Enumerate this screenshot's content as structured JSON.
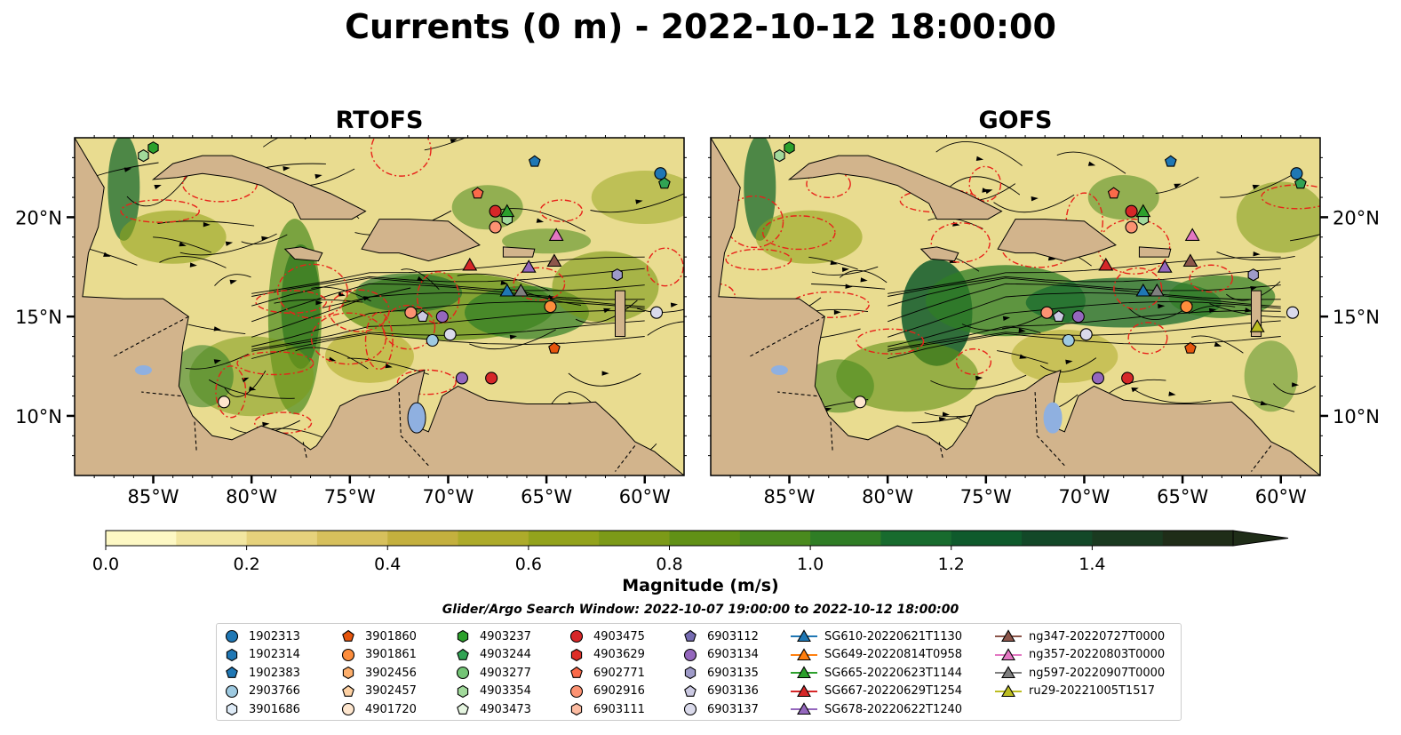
{
  "title": "Currents (0 m) - 2022-10-12 18:00:00",
  "panels": [
    {
      "title": "RTOFS"
    },
    {
      "title": "GOFS"
    }
  ],
  "colorbar": {
    "label": "Magnitude (m/s)",
    "ticks": [
      "0.0",
      "0.2",
      "0.4",
      "0.6",
      "0.8",
      "1.0",
      "1.2",
      "1.4"
    ],
    "colors": [
      "#fdf8c4",
      "#f2e6a0",
      "#e6d27c",
      "#d7c05c",
      "#c4b03e",
      "#adab2a",
      "#93a31c",
      "#7c9a18",
      "#619116",
      "#4a8a1e",
      "#2f7d25",
      "#186b2e",
      "#0f5a2c",
      "#134828",
      "#1a3a20",
      "#1f2d18"
    ],
    "vmin": 0.0,
    "vmax": 1.6
  },
  "search_window": "Glider/Argo Search Window: 2022-10-07 19:00:00 to 2022-10-12 18:00:00",
  "x_tick_labels": [
    "85°W",
    "80°W",
    "75°W",
    "70°W",
    "65°W",
    "60°W"
  ],
  "y_tick_labels": [
    "20°N",
    "15°N",
    "10°N"
  ],
  "legend": [
    [
      {
        "label": "1902313",
        "marker": "circle",
        "color": "#1f77b4"
      },
      {
        "label": "1902314",
        "marker": "hexagon",
        "color": "#1f77b4"
      },
      {
        "label": "1902383",
        "marker": "pentagon",
        "color": "#1f77b4"
      },
      {
        "label": "2903766",
        "marker": "circle",
        "color": "#9ecae1"
      },
      {
        "label": "3901686",
        "marker": "hexagon",
        "color": "#deebf7"
      }
    ],
    [
      {
        "label": "3901860",
        "marker": "pentagon",
        "color": "#e6550d"
      },
      {
        "label": "3901861",
        "marker": "circle",
        "color": "#fd8d3c"
      },
      {
        "label": "3902456",
        "marker": "hexagon",
        "color": "#fdae6b"
      },
      {
        "label": "3902457",
        "marker": "pentagon",
        "color": "#fdd0a2"
      },
      {
        "label": "4901720",
        "marker": "circle",
        "color": "#fee6ce"
      }
    ],
    [
      {
        "label": "4903237",
        "marker": "hexagon",
        "color": "#2ca02c"
      },
      {
        "label": "4903244",
        "marker": "pentagon",
        "color": "#31a354"
      },
      {
        "label": "4903277",
        "marker": "circle",
        "color": "#74c476"
      },
      {
        "label": "4903354",
        "marker": "hexagon",
        "color": "#a1d99b"
      },
      {
        "label": "4903473",
        "marker": "pentagon",
        "color": "#e5f5e0"
      }
    ],
    [
      {
        "label": "4903475",
        "marker": "circle",
        "color": "#d62728"
      },
      {
        "label": "4903629",
        "marker": "hexagon",
        "color": "#de2d26"
      },
      {
        "label": "6902771",
        "marker": "pentagon",
        "color": "#fb6a4a"
      },
      {
        "label": "6902916",
        "marker": "circle",
        "color": "#fc9272"
      },
      {
        "label": "6903111",
        "marker": "hexagon",
        "color": "#fcbba1"
      }
    ],
    [
      {
        "label": "6903112",
        "marker": "pentagon",
        "color": "#756bb1"
      },
      {
        "label": "6903134",
        "marker": "circle",
        "color": "#9467bd"
      },
      {
        "label": "6903135",
        "marker": "hexagon",
        "color": "#9e9ac8"
      },
      {
        "label": "6903136",
        "marker": "pentagon",
        "color": "#cbc9e2"
      },
      {
        "label": "6903137",
        "marker": "circle",
        "color": "#dadaeb"
      }
    ],
    [
      {
        "label": "SG610-20220621T1130",
        "marker": "triangle-line",
        "color": "#1f77b4"
      },
      {
        "label": "SG649-20220814T0958",
        "marker": "triangle-line",
        "color": "#ff7f0e"
      },
      {
        "label": "SG665-20220623T1144",
        "marker": "triangle-line",
        "color": "#2ca02c"
      },
      {
        "label": "SG667-20220629T1254",
        "marker": "triangle-line",
        "color": "#d62728"
      },
      {
        "label": "SG678-20220622T1240",
        "marker": "triangle-line",
        "color": "#9467bd"
      }
    ],
    [
      {
        "label": "ng347-20220727T0000",
        "marker": "triangle-line",
        "color": "#8c564b"
      },
      {
        "label": "ng357-20220803T0000",
        "marker": "triangle-line",
        "color": "#e377c2"
      },
      {
        "label": "ng597-20220907T0000",
        "marker": "triangle-line",
        "color": "#7f7f7f"
      },
      {
        "label": "ru29-20221005T1517",
        "marker": "triangle-line",
        "color": "#bcbd22"
      }
    ]
  ],
  "chart_data": [
    {
      "type": "map",
      "title": "RTOFS",
      "quantity": "Currents (0 m) magnitude",
      "units": "m/s",
      "xlim": [
        -89,
        -58
      ],
      "ylim": [
        7,
        24
      ],
      "x_ticks": [
        -85,
        -80,
        -75,
        -70,
        -65,
        -60
      ],
      "y_ticks": [
        10,
        15,
        20
      ],
      "observations": [
        {
          "id": "4903237",
          "lon": -85.0,
          "lat": 23.5
        },
        {
          "id": "4903354",
          "lon": -85.5,
          "lat": 23.1
        },
        {
          "id": "1902383",
          "lon": -65.6,
          "lat": 22.8
        },
        {
          "id": "1902313",
          "lon": -59.2,
          "lat": 22.2
        },
        {
          "id": "4903244",
          "lon": -59.0,
          "lat": 21.7
        },
        {
          "id": "6902771",
          "lon": -68.5,
          "lat": 21.2
        },
        {
          "id": "4903475",
          "lon": -67.6,
          "lat": 20.3
        },
        {
          "id": "4903354",
          "lon": -67.0,
          "lat": 19.9
        },
        {
          "id": "6902916",
          "lon": -67.6,
          "lat": 19.5
        },
        {
          "id": "SG665-20220623T1144",
          "lon": -67.0,
          "lat": 20.3
        },
        {
          "id": "ng357-20220803T0000",
          "lon": -64.5,
          "lat": 19.1
        },
        {
          "id": "SG667-20220629T1254",
          "lon": -68.9,
          "lat": 17.6
        },
        {
          "id": "ng347-20220727T0000",
          "lon": -64.6,
          "lat": 17.8
        },
        {
          "id": "SG678-20220622T1240",
          "lon": -65.9,
          "lat": 17.5
        },
        {
          "id": "SG610-20220621T1130",
          "lon": -67.0,
          "lat": 16.3
        },
        {
          "id": "ng597-20220907T0000",
          "lon": -66.3,
          "lat": 16.3
        },
        {
          "id": "6903135",
          "lon": -61.4,
          "lat": 17.1
        },
        {
          "id": "3901861",
          "lon": -64.8,
          "lat": 15.5
        },
        {
          "id": "6903137",
          "lon": -59.4,
          "lat": 15.2
        },
        {
          "id": "6902916",
          "lon": -71.9,
          "lat": 15.2
        },
        {
          "id": "6903136",
          "lon": -71.3,
          "lat": 15.0
        },
        {
          "id": "6903134",
          "lon": -70.3,
          "lat": 15.0
        },
        {
          "id": "2903766",
          "lon": -70.8,
          "lat": 13.8
        },
        {
          "id": "6903137",
          "lon": -69.9,
          "lat": 14.1
        },
        {
          "id": "3901860",
          "lon": -64.6,
          "lat": 13.4
        },
        {
          "id": "6903134",
          "lon": -69.3,
          "lat": 11.9
        },
        {
          "id": "4903475",
          "lon": -67.8,
          "lat": 11.9
        },
        {
          "id": "4901720",
          "lon": -81.4,
          "lat": 10.7
        }
      ]
    },
    {
      "type": "map",
      "title": "GOFS",
      "quantity": "Currents (0 m) magnitude",
      "units": "m/s",
      "xlim": [
        -89,
        -58
      ],
      "ylim": [
        7,
        24
      ],
      "x_ticks": [
        -85,
        -80,
        -75,
        -70,
        -65,
        -60
      ],
      "y_ticks": [
        10,
        15,
        20
      ],
      "observations": [
        {
          "id": "4903237",
          "lon": -85.0,
          "lat": 23.5
        },
        {
          "id": "4903354",
          "lon": -85.5,
          "lat": 23.1
        },
        {
          "id": "1902383",
          "lon": -65.6,
          "lat": 22.8
        },
        {
          "id": "1902313",
          "lon": -59.2,
          "lat": 22.2
        },
        {
          "id": "4903244",
          "lon": -59.0,
          "lat": 21.7
        },
        {
          "id": "6902771",
          "lon": -68.5,
          "lat": 21.2
        },
        {
          "id": "4903475",
          "lon": -67.6,
          "lat": 20.3
        },
        {
          "id": "4903354",
          "lon": -67.0,
          "lat": 19.9
        },
        {
          "id": "6902916",
          "lon": -67.6,
          "lat": 19.5
        },
        {
          "id": "SG665-20220623T1144",
          "lon": -67.0,
          "lat": 20.3
        },
        {
          "id": "ng357-20220803T0000",
          "lon": -64.5,
          "lat": 19.1
        },
        {
          "id": "SG667-20220629T1254",
          "lon": -68.9,
          "lat": 17.6
        },
        {
          "id": "ng347-20220727T0000",
          "lon": -64.6,
          "lat": 17.8
        },
        {
          "id": "SG678-20220622T1240",
          "lon": -65.9,
          "lat": 17.5
        },
        {
          "id": "SG610-20220621T1130",
          "lon": -67.0,
          "lat": 16.3
        },
        {
          "id": "ng597-20220907T0000",
          "lon": -66.3,
          "lat": 16.3
        },
        {
          "id": "6903135",
          "lon": -61.4,
          "lat": 17.1
        },
        {
          "id": "3901861",
          "lon": -64.8,
          "lat": 15.5
        },
        {
          "id": "6903137",
          "lon": -59.4,
          "lat": 15.2
        },
        {
          "id": "6902916",
          "lon": -71.9,
          "lat": 15.2
        },
        {
          "id": "6903136",
          "lon": -71.3,
          "lat": 15.0
        },
        {
          "id": "6903134",
          "lon": -70.3,
          "lat": 15.0
        },
        {
          "id": "2903766",
          "lon": -70.8,
          "lat": 13.8
        },
        {
          "id": "6903137",
          "lon": -69.9,
          "lat": 14.1
        },
        {
          "id": "3901860",
          "lon": -64.6,
          "lat": 13.4
        },
        {
          "id": "6903134",
          "lon": -69.3,
          "lat": 11.9
        },
        {
          "id": "4903475",
          "lon": -67.8,
          "lat": 11.9
        },
        {
          "id": "4901720",
          "lon": -81.4,
          "lat": 10.7
        },
        {
          "id": "ru29-20221005T1517",
          "lon": -61.2,
          "lat": 14.5
        }
      ]
    }
  ]
}
